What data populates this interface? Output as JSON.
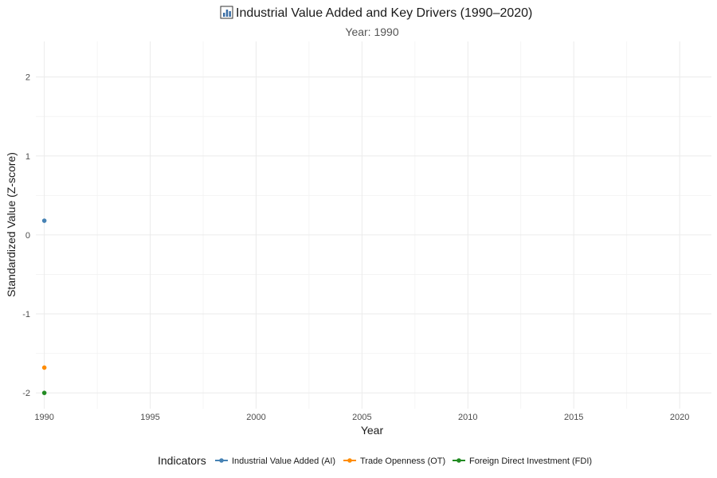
{
  "chart_data": {
    "type": "scatter",
    "title": "Industrial Value Added and Key Drivers (1990–2020)",
    "title_icon": "bar-chart-icon",
    "subtitle": "Year: 1990",
    "xlabel": "Year",
    "ylabel": "Standardized Value (Z-score)",
    "xlim": [
      1989.6,
      2021.5
    ],
    "ylim": [
      -2.2,
      2.45
    ],
    "x_ticks": [
      1990,
      1995,
      2000,
      2005,
      2010,
      2015,
      2020
    ],
    "y_ticks": [
      -2,
      -1,
      0,
      1,
      2
    ],
    "grid": true,
    "legend": {
      "title": "Indicators",
      "position": "bottom"
    },
    "series": [
      {
        "name": "Industrial Value Added (AI)",
        "color": "#4682b4",
        "x": [
          1990
        ],
        "values": [
          0.18
        ]
      },
      {
        "name": "Trade Openness (OT)",
        "color": "#ff8c00",
        "x": [
          1990
        ],
        "values": [
          -1.68
        ]
      },
      {
        "name": "Foreign Direct Investment (FDI)",
        "color": "#228b22",
        "x": [
          1990
        ],
        "values": [
          -2.0
        ]
      }
    ]
  }
}
